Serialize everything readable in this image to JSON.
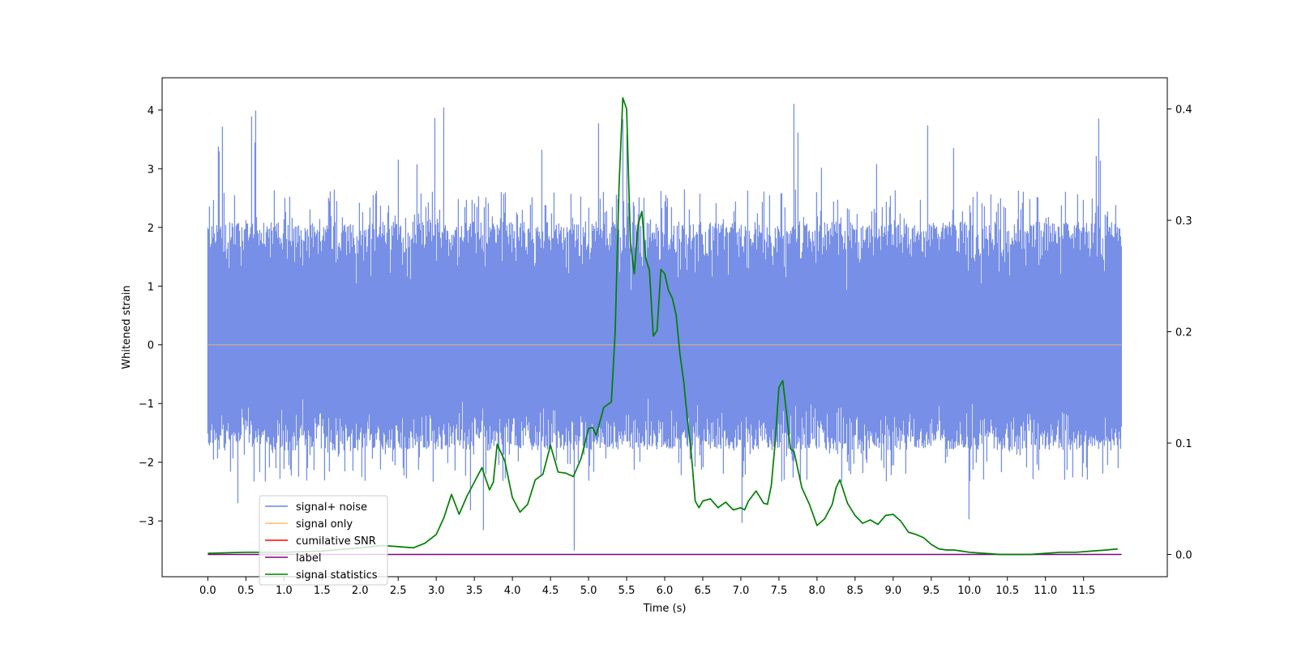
{
  "chart_data": {
    "type": "line",
    "xlabel": "Time (s)",
    "ylabel": "Whitened strain",
    "ylabel_right": "",
    "xlim": [
      -0.6,
      12.6
    ],
    "ylim": [
      -3.95,
      4.55
    ],
    "ylim_right": [
      -0.02,
      0.428
    ],
    "xticks": [
      0.0,
      0.5,
      1.0,
      1.5,
      2.0,
      2.5,
      3.0,
      3.5,
      4.0,
      4.5,
      5.0,
      5.5,
      6.0,
      6.5,
      7.0,
      7.5,
      8.0,
      8.5,
      9.0,
      9.5,
      10.0,
      10.5,
      11.0,
      11.5
    ],
    "xtick_labels": [
      "0.0",
      "0.5",
      "1.0",
      "1.5",
      "2.0",
      "2.5",
      "3.0",
      "3.5",
      "4.0",
      "4.5",
      "5.0",
      "5.5",
      "6.0",
      "6.5",
      "7.0",
      "7.5",
      "8.0",
      "8.5",
      "9.0",
      "9.5",
      "10.0",
      "10.5",
      "11.0",
      "11.5"
    ],
    "yticks": [
      -3,
      -2,
      -1,
      0,
      1,
      2,
      3,
      4
    ],
    "ytick_labels": [
      "−3",
      "−2",
      "−1",
      "0",
      "1",
      "2",
      "3",
      "4"
    ],
    "yticks_right": [
      0.0,
      0.1,
      0.2,
      0.3,
      0.4
    ],
    "ytick_labels_right": [
      "0.0",
      "0.1",
      "0.2",
      "0.3",
      "0.4"
    ],
    "legend_position": "lower-left",
    "grid": false,
    "series": [
      {
        "name": "signal+ noise",
        "color": "#6b86e4",
        "axis": "left",
        "kind": "noise",
        "x_range": [
          0.0,
          12.0
        ],
        "typical_range": [
          -1.8,
          2.1
        ],
        "max": 4.18,
        "min": -3.55
      },
      {
        "name": "signal only",
        "color": "#ffbf69",
        "axis": "left",
        "x": [
          0.0,
          12.0
        ],
        "y": [
          0.0,
          0.0
        ]
      },
      {
        "name": "cumilative SNR",
        "color": "#ff0000",
        "axis": "right",
        "x": [],
        "y": []
      },
      {
        "name": "label",
        "color": "#800080",
        "axis": "right",
        "x": [
          0.0,
          12.0
        ],
        "y": [
          0.0,
          0.0
        ]
      },
      {
        "name": "signal statistics",
        "color": "#008000",
        "axis": "right",
        "x": [
          0.0,
          0.5,
          1.0,
          1.5,
          2.0,
          2.3,
          2.5,
          2.7,
          2.85,
          3.0,
          3.1,
          3.2,
          3.3,
          3.4,
          3.5,
          3.6,
          3.7,
          3.75,
          3.8,
          3.9,
          4.0,
          4.1,
          4.2,
          4.3,
          4.4,
          4.5,
          4.6,
          4.7,
          4.8,
          4.9,
          5.0,
          5.05,
          5.1,
          5.2,
          5.3,
          5.35,
          5.4,
          5.45,
          5.5,
          5.55,
          5.6,
          5.65,
          5.7,
          5.75,
          5.8,
          5.85,
          5.9,
          5.95,
          6.0,
          6.05,
          6.1,
          6.15,
          6.2,
          6.25,
          6.3,
          6.35,
          6.4,
          6.45,
          6.5,
          6.6,
          6.7,
          6.8,
          6.9,
          7.0,
          7.05,
          7.1,
          7.2,
          7.3,
          7.35,
          7.4,
          7.45,
          7.5,
          7.55,
          7.6,
          7.65,
          7.7,
          7.8,
          7.9,
          8.0,
          8.1,
          8.2,
          8.25,
          8.3,
          8.4,
          8.5,
          8.6,
          8.7,
          8.8,
          8.9,
          9.0,
          9.1,
          9.2,
          9.3,
          9.4,
          9.5,
          9.6,
          9.7,
          9.8,
          9.9,
          10.0,
          10.2,
          10.4,
          10.6,
          10.8,
          11.0,
          11.2,
          11.4,
          11.6,
          11.8,
          11.95
        ],
        "y": [
          0.001,
          0.002,
          0.002,
          0.003,
          0.006,
          0.008,
          0.007,
          0.006,
          0.01,
          0.018,
          0.033,
          0.054,
          0.036,
          0.052,
          0.065,
          0.078,
          0.058,
          0.065,
          0.099,
          0.084,
          0.051,
          0.038,
          0.045,
          0.067,
          0.072,
          0.098,
          0.074,
          0.073,
          0.07,
          0.086,
          0.113,
          0.114,
          0.107,
          0.132,
          0.137,
          0.2,
          0.33,
          0.41,
          0.4,
          0.28,
          0.252,
          0.296,
          0.308,
          0.266,
          0.255,
          0.196,
          0.201,
          0.256,
          0.252,
          0.237,
          0.23,
          0.215,
          0.18,
          0.155,
          0.12,
          0.09,
          0.048,
          0.042,
          0.048,
          0.05,
          0.042,
          0.047,
          0.04,
          0.042,
          0.04,
          0.048,
          0.057,
          0.046,
          0.045,
          0.062,
          0.1,
          0.15,
          0.156,
          0.127,
          0.095,
          0.092,
          0.06,
          0.045,
          0.026,
          0.032,
          0.045,
          0.06,
          0.067,
          0.046,
          0.035,
          0.028,
          0.031,
          0.027,
          0.035,
          0.036,
          0.03,
          0.02,
          0.018,
          0.015,
          0.009,
          0.005,
          0.004,
          0.004,
          0.003,
          0.002,
          0.001,
          0.0,
          0.0,
          0.0,
          0.001,
          0.002,
          0.002,
          0.003,
          0.004,
          0.005
        ]
      }
    ]
  }
}
